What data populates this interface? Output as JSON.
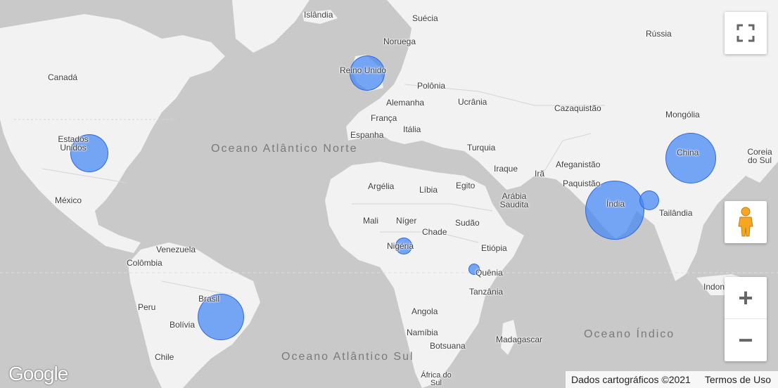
{
  "labels": {
    "islandia": "Islândia",
    "suecia": "Suécia",
    "noruega": "Noruega",
    "russia": "Rússia",
    "canada": "Canadá",
    "reino_unido": "Reino Unido",
    "polonia": "Polônia",
    "alemanha": "Alemanha",
    "ucrania": "Ucrânia",
    "cazaquistao": "Cazaquistão",
    "mongolia": "Mongólia",
    "franca": "França",
    "italia": "Itália",
    "espanha": "Espanha",
    "estados_unidos": "Estados Unidos",
    "turquia": "Turquia",
    "china": "China",
    "coreia_do_sul": "Coreia do Sul",
    "iraque": "Iraque",
    "ira": "Irã",
    "afeganistao": "Afeganistão",
    "paquistao": "Paquistão",
    "argelia": "Argélia",
    "libia": "Líbia",
    "egito": "Egito",
    "arabia_saudita": "Arábia Saudita",
    "mexico": "México",
    "india": "Índia",
    "mali": "Mali",
    "niger": "Níger",
    "chade": "Chade",
    "sudao": "Sudão",
    "tailandia": "Tailândia",
    "nigeria": "Nigéria",
    "etiopia": "Etiópia",
    "venezuela": "Venezuela",
    "colombia": "Colômbia",
    "quenia": "Quênia",
    "tanzania": "Tanzânia",
    "indonesia_partial": "Indon",
    "peru": "Peru",
    "brasil": "Brasil",
    "angola": "Angola",
    "bolivia": "Bolívia",
    "namibia": "Namíbia",
    "madagascar": "Madagascar",
    "botsuana": "Botsuana",
    "chile": "Chile",
    "africa_do_sul": "África do Sul"
  },
  "oceans": {
    "atlantico_norte": "Oceano Atlântico Norte",
    "atlantico_sul": "Oceano Atlântico Sul",
    "indico": "Oceano Índico"
  },
  "bubbles": [
    {
      "name": "Estados Unidos",
      "size": "medium"
    },
    {
      "name": "Reino Unido",
      "size": "medium"
    },
    {
      "name": "China",
      "size": "large"
    },
    {
      "name": "Índia",
      "size": "largest"
    },
    {
      "name": "Bangladesh",
      "size": "small"
    },
    {
      "name": "Nigéria",
      "size": "small"
    },
    {
      "name": "Quênia",
      "size": "tiny"
    },
    {
      "name": "Brasil",
      "size": "large"
    }
  ],
  "controls": {
    "fullscreen_icon": "fullscreen-icon",
    "pegman_icon": "pegman-icon",
    "zoom_in_label": "+",
    "zoom_out_label": "−"
  },
  "branding": {
    "logo": "Google"
  },
  "footer": {
    "map_data": "Dados cartográficos ©2021",
    "terms": "Termos de Uso"
  },
  "colors": {
    "water": "#c9c9c9",
    "land": "#f2f2f2",
    "bubble_fill": "#4285f4"
  }
}
